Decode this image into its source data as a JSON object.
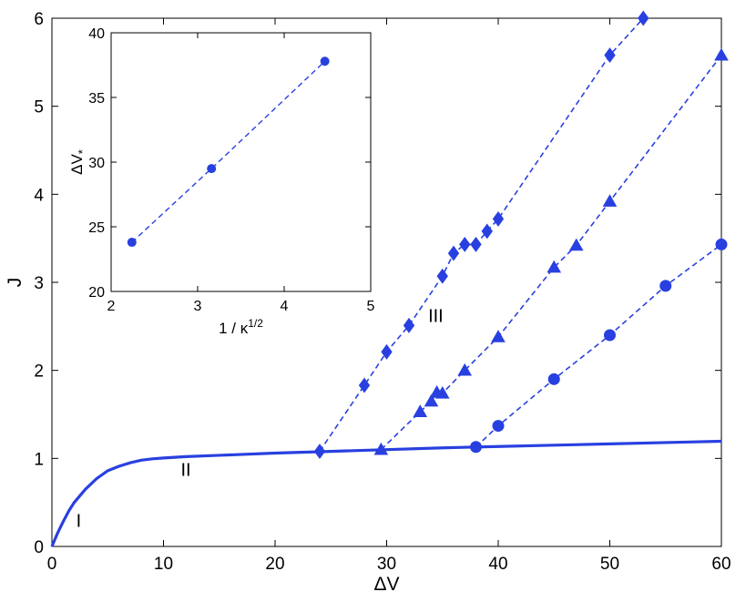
{
  "chart_data": [
    {
      "type": "line",
      "xlabel": "ΔV",
      "ylabel": "J",
      "xlim": [
        0,
        60
      ],
      "ylim": [
        0,
        6
      ],
      "xticks": [
        0,
        10,
        20,
        30,
        40,
        50,
        60
      ],
      "yticks": [
        0,
        1,
        2,
        3,
        4,
        5,
        6
      ],
      "grid": false,
      "color": "#2840e0",
      "annotations": [
        {
          "text": "I",
          "x": 2.4,
          "y": 0.22
        },
        {
          "text": "II",
          "x": 12,
          "y": 0.8
        },
        {
          "text": "III",
          "x": 34.4,
          "y": 2.55
        }
      ],
      "series": [
        {
          "style": "solid",
          "marker": "none",
          "x": [
            0,
            0.5,
            1,
            1.5,
            2,
            3,
            4,
            5,
            6,
            7,
            8,
            9,
            10,
            12,
            15,
            20,
            25,
            30,
            35,
            40,
            45,
            50,
            55,
            60
          ],
          "y": [
            0,
            0.15,
            0.28,
            0.4,
            0.5,
            0.65,
            0.77,
            0.86,
            0.91,
            0.95,
            0.98,
            0.995,
            1.005,
            1.02,
            1.035,
            1.06,
            1.08,
            1.1,
            1.12,
            1.135,
            1.15,
            1.165,
            1.18,
            1.195
          ]
        },
        {
          "style": "dashed",
          "marker": "diamond",
          "x": [
            24,
            28,
            30,
            32,
            35,
            36,
            37,
            38,
            39,
            40,
            50,
            53
          ],
          "y": [
            1.08,
            1.83,
            2.21,
            2.51,
            3.07,
            3.33,
            3.43,
            3.43,
            3.58,
            3.72,
            5.58,
            6.0
          ]
        },
        {
          "style": "dashed",
          "marker": "triangle",
          "x": [
            29.5,
            33,
            34,
            34.5,
            35,
            37,
            40,
            45,
            47,
            50,
            60
          ],
          "y": [
            1.1,
            1.53,
            1.65,
            1.75,
            1.74,
            2.0,
            2.38,
            3.17,
            3.42,
            3.92,
            5.58
          ]
        },
        {
          "style": "dashed",
          "marker": "circle",
          "x": [
            38,
            40,
            45,
            50,
            55,
            60
          ],
          "y": [
            1.13,
            1.37,
            1.9,
            2.4,
            2.96,
            3.43
          ]
        }
      ]
    },
    {
      "type": "line",
      "xlabel": "1 / κ",
      "xlabel_sup": "1/2",
      "ylabel": "ΔV",
      "ylabel_sub": "*",
      "xlim": [
        2,
        5
      ],
      "ylim": [
        20,
        40
      ],
      "xticks": [
        2,
        3,
        4,
        5
      ],
      "yticks": [
        20,
        25,
        30,
        35,
        40
      ],
      "grid": false,
      "color": "#2840e0",
      "series": [
        {
          "style": "dashed",
          "marker": "circle",
          "x": [
            2.24,
            3.16,
            4.47
          ],
          "y": [
            23.8,
            29.5,
            37.8
          ]
        }
      ]
    }
  ]
}
